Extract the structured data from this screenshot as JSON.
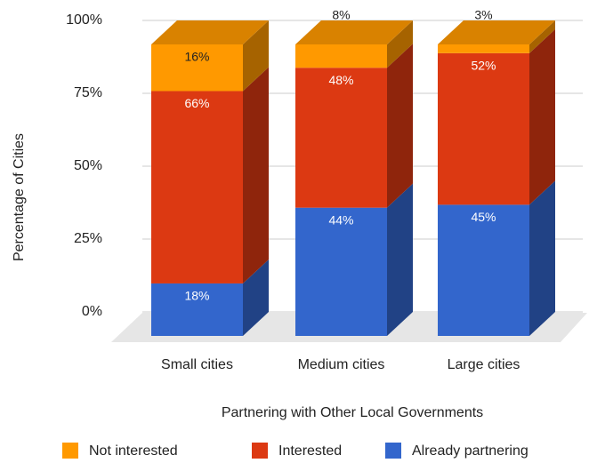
{
  "chart_data": {
    "type": "bar3d-stacked",
    "categories": [
      "Small cities",
      "Medium cities",
      "Large cities"
    ],
    "series": [
      {
        "name": "Already partnering",
        "color": "#3366cc",
        "values": [
          18,
          44,
          45
        ],
        "value_labels": [
          "18%",
          "44%",
          "45%"
        ]
      },
      {
        "name": "Interested",
        "color": "#dc3912",
        "values": [
          66,
          48,
          52
        ],
        "value_labels": [
          "66%",
          "48%",
          "52%"
        ]
      },
      {
        "name": "Not interested",
        "color": "#ff9900",
        "values": [
          16,
          8,
          3
        ],
        "value_labels": [
          "16%",
          "8%",
          "3%"
        ]
      }
    ],
    "ylim": [
      0,
      100
    ],
    "yticks": [
      {
        "value": 0,
        "label": "0%"
      },
      {
        "value": 25,
        "label": "25%"
      },
      {
        "value": 50,
        "label": "50%"
      },
      {
        "value": 75,
        "label": "75%"
      },
      {
        "value": 100,
        "label": "100%"
      }
    ],
    "ylabel": "Percentage of Cities",
    "xlabel": "Partnering with Other Local Governments",
    "grid": true,
    "legend": "bottom"
  }
}
